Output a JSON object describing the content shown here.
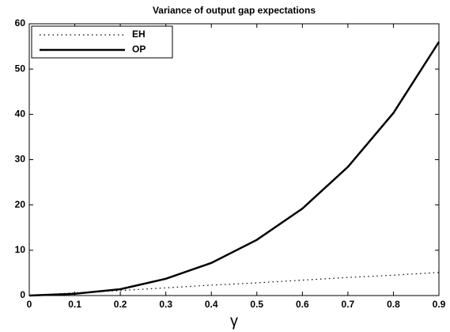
{
  "chart_data": {
    "type": "line",
    "title": "Variance of output gap expectations",
    "x_label": "γ",
    "x": [
      0,
      0.1,
      0.2,
      0.3,
      0.4,
      0.5,
      0.6,
      0.7,
      0.8,
      0.9
    ],
    "series": [
      {
        "name": "EH",
        "color": "#000000",
        "dash": "dotted",
        "values": [
          0,
          0.6,
          1.1,
          1.7,
          2.3,
          2.8,
          3.4,
          4.0,
          4.5,
          5.1
        ]
      },
      {
        "name": "OP",
        "color": "#000000",
        "dash": "solid",
        "values": [
          0,
          0.4,
          1.4,
          3.7,
          7.2,
          12.3,
          19.2,
          28.4,
          40.3,
          56
        ]
      }
    ],
    "xlim": [
      0,
      0.9
    ],
    "xticks": [
      0,
      0.1,
      0.2,
      0.3,
      0.4,
      0.5,
      0.6,
      0.7,
      0.8,
      0.9
    ],
    "ylim": [
      0,
      60
    ],
    "yticks": [
      0,
      10,
      20,
      30,
      40,
      50,
      60
    ],
    "grid": false,
    "legend": "upper-left"
  }
}
